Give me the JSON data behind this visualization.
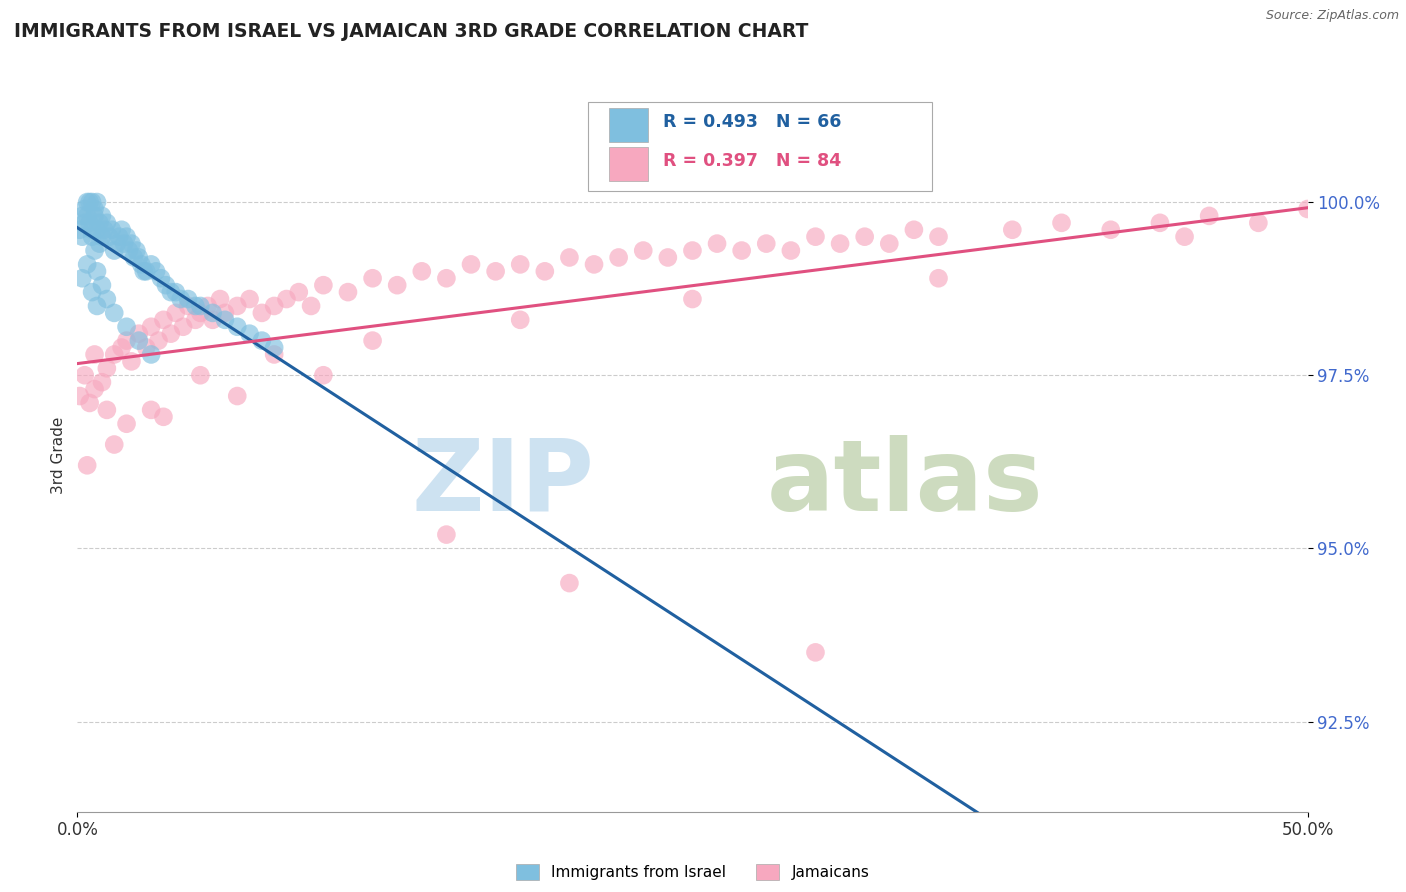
{
  "title": "IMMIGRANTS FROM ISRAEL VS JAMAICAN 3RD GRADE CORRELATION CHART",
  "source": "Source: ZipAtlas.com",
  "ylabel": "3rd Grade",
  "x_min": 0.0,
  "x_max": 0.5,
  "y_min": 91.2,
  "y_max": 101.5,
  "y_ticks": [
    92.5,
    95.0,
    97.5,
    100.0
  ],
  "x_ticks": [
    0.0,
    0.5
  ],
  "x_tick_labels": [
    "0.0%",
    "50.0%"
  ],
  "y_tick_labels": [
    "92.5%",
    "95.0%",
    "97.5%",
    "100.0%"
  ],
  "legend_labels": [
    "Immigrants from Israel",
    "Jamaicans"
  ],
  "blue_color": "#7fbfdf",
  "pink_color": "#f7a8bf",
  "blue_line_color": "#2060a0",
  "pink_line_color": "#e05080",
  "R_blue": 0.493,
  "N_blue": 66,
  "R_pink": 0.397,
  "N_pink": 84,
  "blue_x": [
    0.001,
    0.002,
    0.003,
    0.004,
    0.005,
    0.005,
    0.006,
    0.006,
    0.007,
    0.007,
    0.008,
    0.008,
    0.009,
    0.009,
    0.01,
    0.01,
    0.011,
    0.012,
    0.013,
    0.014,
    0.015,
    0.016,
    0.017,
    0.018,
    0.019,
    0.02,
    0.021,
    0.022,
    0.023,
    0.024,
    0.025,
    0.026,
    0.027,
    0.028,
    0.03,
    0.032,
    0.034,
    0.036,
    0.038,
    0.04,
    0.042,
    0.045,
    0.048,
    0.05,
    0.055,
    0.06,
    0.065,
    0.07,
    0.075,
    0.08,
    0.002,
    0.003,
    0.004,
    0.006,
    0.007,
    0.008,
    0.01,
    0.012,
    0.015,
    0.02,
    0.025,
    0.03,
    0.002,
    0.004,
    0.006,
    0.008
  ],
  "blue_y": [
    99.6,
    99.8,
    99.9,
    100.0,
    100.0,
    99.7,
    100.0,
    99.5,
    99.8,
    99.9,
    99.6,
    100.0,
    99.4,
    99.7,
    99.5,
    99.8,
    99.6,
    99.7,
    99.5,
    99.6,
    99.3,
    99.4,
    99.5,
    99.6,
    99.4,
    99.5,
    99.3,
    99.4,
    99.2,
    99.3,
    99.2,
    99.1,
    99.0,
    99.0,
    99.1,
    99.0,
    98.9,
    98.8,
    98.7,
    98.7,
    98.6,
    98.6,
    98.5,
    98.5,
    98.4,
    98.3,
    98.2,
    98.1,
    98.0,
    97.9,
    99.5,
    99.7,
    99.8,
    99.6,
    99.3,
    99.0,
    98.8,
    98.6,
    98.4,
    98.2,
    98.0,
    97.8,
    98.9,
    99.1,
    98.7,
    98.5
  ],
  "pink_x": [
    0.001,
    0.003,
    0.005,
    0.007,
    0.01,
    0.012,
    0.015,
    0.018,
    0.02,
    0.022,
    0.025,
    0.028,
    0.03,
    0.033,
    0.035,
    0.038,
    0.04,
    0.043,
    0.045,
    0.048,
    0.05,
    0.053,
    0.055,
    0.058,
    0.06,
    0.065,
    0.07,
    0.075,
    0.08,
    0.085,
    0.09,
    0.095,
    0.1,
    0.11,
    0.12,
    0.13,
    0.14,
    0.15,
    0.16,
    0.17,
    0.18,
    0.19,
    0.2,
    0.21,
    0.22,
    0.23,
    0.24,
    0.25,
    0.26,
    0.27,
    0.28,
    0.29,
    0.3,
    0.31,
    0.32,
    0.33,
    0.34,
    0.35,
    0.38,
    0.4,
    0.42,
    0.44,
    0.46,
    0.48,
    0.5,
    0.007,
    0.012,
    0.02,
    0.03,
    0.05,
    0.08,
    0.12,
    0.18,
    0.25,
    0.35,
    0.45,
    0.004,
    0.015,
    0.035,
    0.065,
    0.1,
    0.15,
    0.2,
    0.3
  ],
  "pink_y": [
    97.2,
    97.5,
    97.1,
    97.8,
    97.4,
    97.6,
    97.8,
    97.9,
    98.0,
    97.7,
    98.1,
    97.9,
    98.2,
    98.0,
    98.3,
    98.1,
    98.4,
    98.2,
    98.5,
    98.3,
    98.4,
    98.5,
    98.3,
    98.6,
    98.4,
    98.5,
    98.6,
    98.4,
    98.5,
    98.6,
    98.7,
    98.5,
    98.8,
    98.7,
    98.9,
    98.8,
    99.0,
    98.9,
    99.1,
    99.0,
    99.1,
    99.0,
    99.2,
    99.1,
    99.2,
    99.3,
    99.2,
    99.3,
    99.4,
    99.3,
    99.4,
    99.3,
    99.5,
    99.4,
    99.5,
    99.4,
    99.6,
    99.5,
    99.6,
    99.7,
    99.6,
    99.7,
    99.8,
    99.7,
    99.9,
    97.3,
    97.0,
    96.8,
    97.0,
    97.5,
    97.8,
    98.0,
    98.3,
    98.6,
    98.9,
    99.5,
    96.2,
    96.5,
    96.9,
    97.2,
    97.5,
    95.2,
    94.5,
    93.5
  ]
}
